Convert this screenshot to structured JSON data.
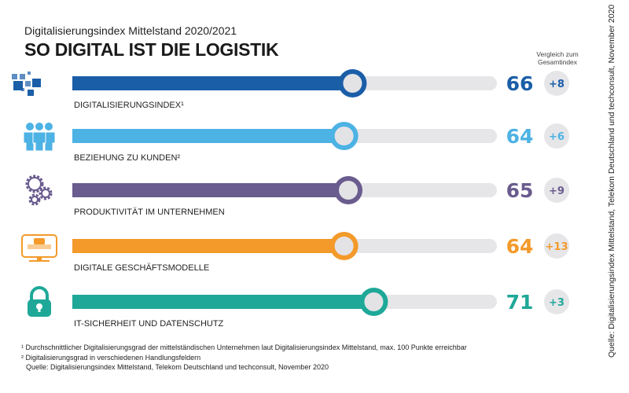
{
  "header": {
    "subtitle": "Digitalisierungsindex Mittelstand 2020/2021",
    "title": "SO DIGITAL IST DIE LOGISTIK",
    "comparison_label": "Vergleich zum Gesamtindex"
  },
  "chart_data": {
    "type": "bar",
    "orientation": "horizontal",
    "xlim": [
      0,
      100
    ],
    "grid": false,
    "categories": [
      "DIGITALISIERUNGSINDEX¹",
      "BEZIEHUNG ZU KUNDEN²",
      "PRODUKTIVITÄT IM UNTERNEHMEN",
      "DIGITALE GESCHÄFTSMODELLE",
      "IT-SICHERHEIT UND DATENSCHUTZ"
    ],
    "values": [
      66,
      64,
      65,
      64,
      71
    ],
    "value_labels": [
      "66",
      "64",
      "65",
      "64",
      "71"
    ],
    "comparison": [
      "+8",
      "+6",
      "+9",
      "+13",
      "+3"
    ],
    "colors": [
      "#1b5ea8",
      "#4db2e4",
      "#6a5c8e",
      "#f39a2a",
      "#1fa898"
    ],
    "icons": [
      "pixel-squares-icon",
      "people-group-icon",
      "gears-icon",
      "computer-monitor-icon",
      "padlock-icon"
    ]
  },
  "colors": {
    "track": "#e6e6e9",
    "badge": "#e6e6e9"
  },
  "footnotes": {
    "note1": "¹ Durchschnittlicher Digitalisierungsgrad der mittelständischen Unternehmen laut Digitalisierungsindex Mittelstand, max. 100 Punkte erreichbar",
    "note2": "² Digitalisierungsgrad in verschiedenen Handlungsfeldern",
    "source": "Quelle: Digitalisierungsindex Mittelstand, Telekom Deutschland und techconsult, November 2020"
  },
  "side_source": "Quelle: Digitalisierungsindex Mittelstand, Telekom Deutschland und techconsult, November 2020"
}
